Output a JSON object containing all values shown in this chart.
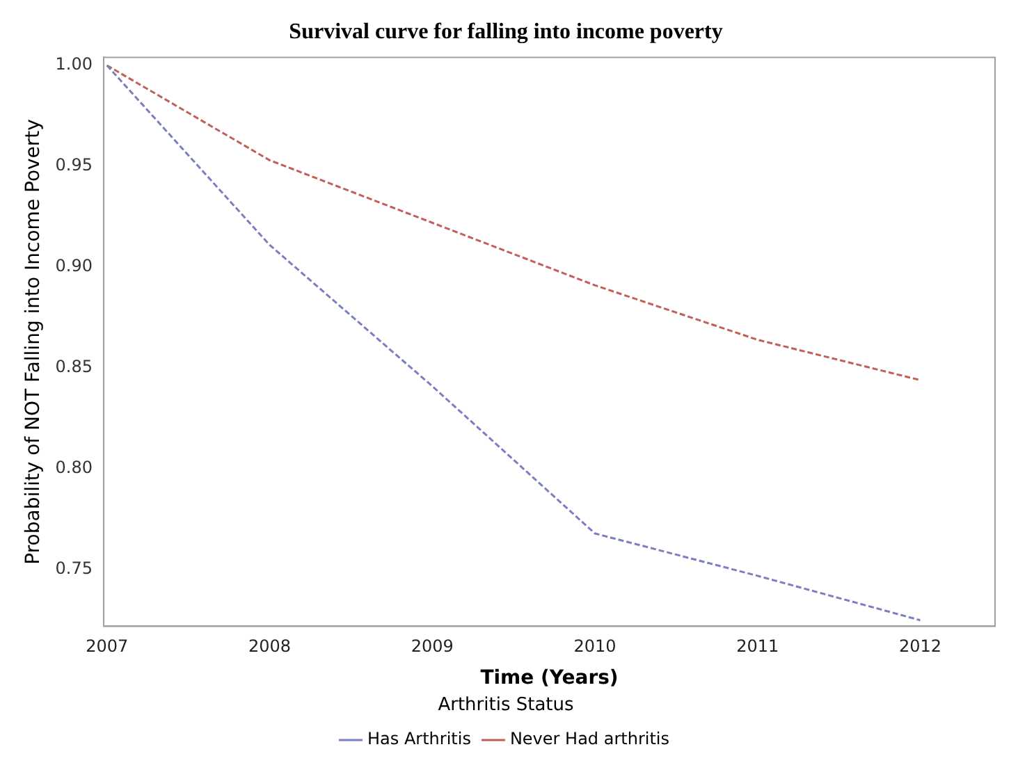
{
  "chart_data": {
    "type": "line",
    "title": "Survival curve for falling into income poverty",
    "xlabel": "Time (Years)",
    "ylabel": "Probability of NOT Falling into Income Poverty",
    "legend_title": "Arthritis Status",
    "x": [
      2007,
      2008,
      2009,
      2010,
      2011,
      2012
    ],
    "series": [
      {
        "name": "Has Arthritis",
        "color": "#7b7fc0",
        "values": [
          1.0,
          0.911,
          0.841,
          0.768,
          0.747,
          0.725
        ]
      },
      {
        "name": "Never Had arthritis",
        "color": "#c0605a",
        "values": [
          1.0,
          0.953,
          0.922,
          0.891,
          0.864,
          0.844
        ]
      }
    ],
    "xlim": [
      2006.98,
      2012.46
    ],
    "xticks": [
      2007,
      2008,
      2009,
      2010,
      2011,
      2012
    ],
    "ylim": [
      0.722,
      1.004
    ],
    "yticks": [
      {
        "value": 0.75,
        "label": "0.75"
      },
      {
        "value": 0.8,
        "label": "0.80"
      },
      {
        "value": 0.85,
        "label": "0.85"
      },
      {
        "value": 0.9,
        "label": "0.90"
      },
      {
        "value": 0.95,
        "label": "0.95"
      },
      {
        "value": 1.0,
        "label": "1.00"
      }
    ],
    "grid": false,
    "legend": "bottom",
    "marker": "none",
    "line_style": "dashed"
  }
}
